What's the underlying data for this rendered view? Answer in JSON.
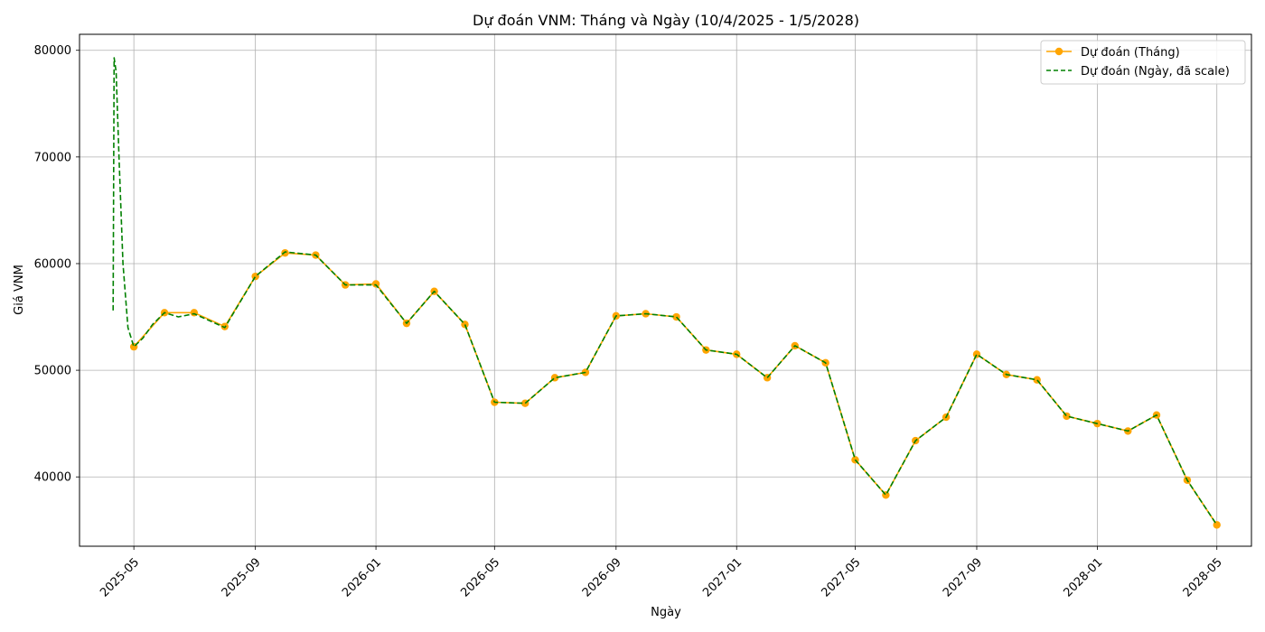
{
  "chart_data": {
    "type": "line",
    "title": "Dự đoán VNM: Tháng và Ngày (10/4/2025 - 1/5/2028)",
    "xlabel": "Ngày",
    "ylabel": "Giá VNM",
    "xlim": [
      "2025-03-07",
      "2028-06-05"
    ],
    "ylim": [
      33500,
      81500
    ],
    "x_ticks": [
      "2025-05",
      "2025-09",
      "2026-01",
      "2026-05",
      "2026-09",
      "2027-01",
      "2027-05",
      "2027-09",
      "2028-01",
      "2028-05"
    ],
    "y_ticks": [
      40000,
      50000,
      60000,
      70000,
      80000
    ],
    "grid": true,
    "legend_position": "top-right",
    "series": [
      {
        "name": "Dự đoán (Tháng)",
        "color": "#FFA500",
        "style": "solid-marker",
        "x": [
          "2025-05-01",
          "2025-06-01",
          "2025-07-01",
          "2025-08-01",
          "2025-09-01",
          "2025-10-01",
          "2025-11-01",
          "2025-12-01",
          "2026-01-01",
          "2026-02-01",
          "2026-03-01",
          "2026-04-01",
          "2026-05-01",
          "2026-06-01",
          "2026-07-01",
          "2026-08-01",
          "2026-09-01",
          "2026-10-01",
          "2026-11-01",
          "2026-12-01",
          "2027-01-01",
          "2027-02-01",
          "2027-03-01",
          "2027-04-01",
          "2027-05-01",
          "2027-06-01",
          "2027-07-01",
          "2027-08-01",
          "2027-09-01",
          "2027-10-01",
          "2027-11-01",
          "2027-12-01",
          "2028-01-01",
          "2028-02-01",
          "2028-03-01",
          "2028-04-01",
          "2028-05-01"
        ],
        "values": [
          52200,
          55400,
          55400,
          54100,
          58800,
          61000,
          60800,
          58000,
          58100,
          54400,
          57400,
          54300,
          47000,
          46900,
          49300,
          49800,
          55100,
          55300,
          55000,
          51900,
          51500,
          49300,
          52300,
          50700,
          41600,
          38300,
          43400,
          45600,
          51500,
          49600,
          49100,
          45700,
          45000,
          44300,
          45800,
          39700,
          35500
        ]
      },
      {
        "name": "Dự đoán (Ngày, đã scale)",
        "color": "#008000",
        "style": "dashed",
        "x": [
          "2025-04-10",
          "2025-04-11",
          "2025-04-13",
          "2025-04-16",
          "2025-04-20",
          "2025-04-25",
          "2025-05-01",
          "2025-05-10",
          "2025-05-20",
          "2025-06-01",
          "2025-06-15",
          "2025-07-01",
          "2025-08-01",
          "2025-09-01",
          "2025-10-01",
          "2025-11-01",
          "2025-12-01",
          "2026-01-01",
          "2026-02-01",
          "2026-03-01",
          "2026-04-01",
          "2026-05-01",
          "2026-06-01",
          "2026-07-01",
          "2026-08-01",
          "2026-09-01",
          "2026-10-01",
          "2026-11-01",
          "2026-12-01",
          "2027-01-01",
          "2027-02-01",
          "2027-03-01",
          "2027-04-01",
          "2027-05-01",
          "2027-06-01",
          "2027-07-01",
          "2027-08-01",
          "2027-09-01",
          "2027-10-01",
          "2027-11-01",
          "2027-12-01",
          "2028-01-01",
          "2028-02-01",
          "2028-03-01",
          "2028-04-01",
          "2028-05-01"
        ],
        "values": [
          55600,
          79300,
          78000,
          70000,
          60000,
          54000,
          52200,
          53000,
          54300,
          55400,
          55000,
          55300,
          54000,
          58800,
          61100,
          60800,
          58000,
          58000,
          54400,
          57400,
          54300,
          47000,
          46900,
          49300,
          49800,
          55100,
          55300,
          55000,
          51900,
          51500,
          49300,
          52300,
          50700,
          41600,
          38300,
          43400,
          45600,
          51500,
          49600,
          49100,
          45700,
          45000,
          44300,
          45800,
          39700,
          35500
        ]
      }
    ]
  }
}
